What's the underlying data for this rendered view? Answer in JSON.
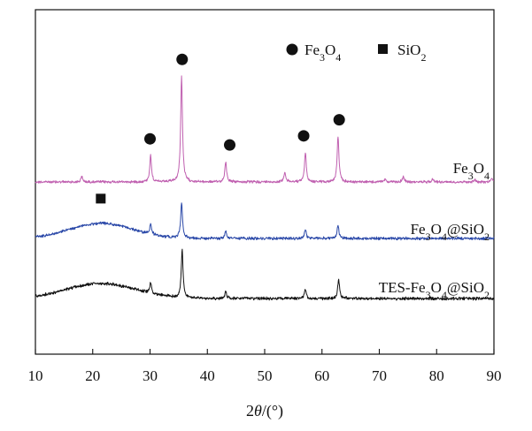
{
  "chart_data": {
    "type": "line",
    "xlabel": "2θ/(°)",
    "ylabel": "",
    "xlim": [
      10,
      90
    ],
    "x_ticks": [
      "10",
      "20",
      "30",
      "40",
      "50",
      "60",
      "70",
      "80",
      "90"
    ],
    "y_ticks_shown": false,
    "legend": [
      {
        "marker": "circle",
        "label": "Fe3O4",
        "label_parts": [
          [
            "Fe",
            ""
          ],
          [
            "3",
            "sub"
          ],
          [
            "O",
            ""
          ],
          [
            "4",
            "sub"
          ]
        ]
      },
      {
        "marker": "square",
        "label": "SiO2",
        "label_parts": [
          [
            "SiO",
            ""
          ],
          [
            "2",
            "sub"
          ]
        ]
      }
    ],
    "series": [
      {
        "name": "Fe3O4",
        "label_parts": [
          [
            "Fe",
            ""
          ],
          [
            "3",
            "sub"
          ],
          [
            "O",
            ""
          ],
          [
            "4",
            "sub"
          ]
        ],
        "color": "#c060b0",
        "baseline": 0.0,
        "hump": {
          "center": 21,
          "width": 5,
          "height": 0.0
        },
        "peaks": [
          [
            18.1,
            0.1
          ],
          [
            30.1,
            0.52
          ],
          [
            35.5,
            2.1
          ],
          [
            43.2,
            0.4
          ],
          [
            53.5,
            0.2
          ],
          [
            57.1,
            0.58
          ],
          [
            62.8,
            0.9
          ],
          [
            71.0,
            0.06
          ],
          [
            74.2,
            0.1
          ],
          [
            79.3,
            0.06
          ],
          [
            86.7,
            0.05
          ],
          [
            89.6,
            0.08
          ]
        ],
        "markers": [
          {
            "x": 30.0,
            "marker": "circle"
          },
          {
            "x": 35.6,
            "marker": "circle"
          },
          {
            "x": 43.9,
            "marker": "circle"
          },
          {
            "x": 56.8,
            "marker": "circle"
          },
          {
            "x": 63.0,
            "marker": "circle"
          }
        ]
      },
      {
        "name": "Fe3O4@SiO2",
        "label_parts": [
          [
            "Fe",
            ""
          ],
          [
            "3",
            "sub"
          ],
          [
            "O",
            ""
          ],
          [
            "4",
            "sub"
          ],
          [
            "@SiO",
            ""
          ],
          [
            "2",
            "sub"
          ]
        ],
        "color": "#2a48a8",
        "baseline": 0.0,
        "hump": {
          "center": 21.5,
          "width": 5.5,
          "height": 0.3
        },
        "peaks": [
          [
            30.1,
            0.2
          ],
          [
            35.5,
            0.7
          ],
          [
            43.2,
            0.14
          ],
          [
            57.1,
            0.18
          ],
          [
            62.8,
            0.26
          ]
        ],
        "markers": [
          {
            "x": 21.4,
            "marker": "square"
          }
        ]
      },
      {
        "name": "TES-Fe3O4@SiO2",
        "label_parts": [
          [
            "TES-Fe",
            ""
          ],
          [
            "3",
            "sub"
          ],
          [
            "O",
            ""
          ],
          [
            "4",
            "sub"
          ],
          [
            "@SiO",
            ""
          ],
          [
            "2",
            "sub"
          ]
        ],
        "color": "#111111",
        "baseline": 0.0,
        "hump": {
          "center": 21.5,
          "width": 6,
          "height": 0.3
        },
        "peaks": [
          [
            30.1,
            0.2
          ],
          [
            35.6,
            0.95
          ],
          [
            43.2,
            0.14
          ],
          [
            57.1,
            0.18
          ],
          [
            62.9,
            0.38
          ]
        ],
        "markers": []
      }
    ]
  }
}
